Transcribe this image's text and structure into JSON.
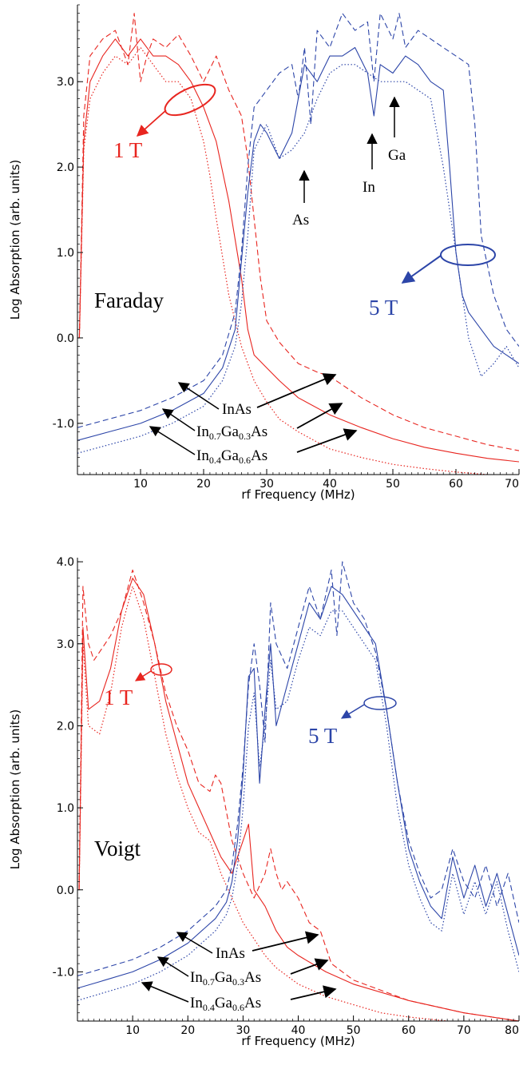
{
  "chart_data": [
    {
      "type": "line",
      "panel": "Faraday",
      "xlabel": "rf Frequency (MHz)",
      "ylabel": "Log Absorption (arb. units)",
      "xlim": [
        0,
        70
      ],
      "ylim": [
        -1.6,
        3.9
      ],
      "x_ticks": [
        10,
        20,
        30,
        40,
        50,
        60,
        70
      ],
      "y_ticks": [
        -1.0,
        0.0,
        1.0,
        2.0,
        3.0
      ],
      "x_tick_labels": [
        "10",
        "20",
        "30",
        "40",
        "50",
        "60",
        "70"
      ],
      "y_tick_labels": [
        "-1.0",
        "0.0",
        "1.0",
        "2.0",
        "3.0"
      ],
      "panel_label": "Faraday",
      "field_labels": [
        "1 T",
        "5 T"
      ],
      "peak_labels": [
        "As",
        "In",
        "Ga"
      ],
      "material_labels": [
        {
          "base": "InAs"
        },
        {
          "base": "In",
          "sub1": "0.7",
          "mid": "Ga",
          "sub2": "0.3",
          "tail": "As"
        },
        {
          "base": "In",
          "sub1": "0.4",
          "mid": "Ga",
          "sub2": "0.6",
          "tail": "As"
        }
      ],
      "colors": {
        "1T": "#e8251f",
        "5T": "#2c45a8"
      },
      "series": [
        {
          "field": "1T",
          "material": "InAs",
          "style": "dashed",
          "x": [
            0.3,
            1,
            2,
            4,
            6,
            8,
            9,
            10,
            11,
            12,
            14,
            16,
            18,
            20,
            22,
            24,
            26,
            27,
            28,
            29,
            30,
            32,
            35,
            38,
            40,
            45,
            50,
            55,
            60,
            65,
            70
          ],
          "y": [
            0.0,
            2.6,
            3.3,
            3.5,
            3.6,
            3.2,
            3.8,
            3.0,
            3.3,
            3.5,
            3.4,
            3.55,
            3.3,
            3.0,
            3.3,
            2.9,
            2.6,
            2.1,
            1.4,
            0.7,
            0.2,
            -0.05,
            -0.3,
            -0.4,
            -0.45,
            -0.7,
            -0.9,
            -1.05,
            -1.15,
            -1.25,
            -1.32
          ]
        },
        {
          "field": "1T",
          "material": "In0.7Ga0.3As",
          "style": "solid",
          "x": [
            0.3,
            1,
            2,
            4,
            6,
            8,
            10,
            12,
            14,
            16,
            18,
            20,
            22,
            24,
            26,
            27,
            28,
            30,
            32,
            35,
            40,
            45,
            50,
            55,
            60,
            65,
            70
          ],
          "y": [
            0.0,
            2.3,
            3.0,
            3.3,
            3.5,
            3.3,
            3.5,
            3.3,
            3.3,
            3.2,
            3.0,
            2.7,
            2.3,
            1.6,
            0.7,
            0.1,
            -0.2,
            -0.35,
            -0.5,
            -0.7,
            -0.9,
            -1.05,
            -1.18,
            -1.28,
            -1.35,
            -1.41,
            -1.45
          ]
        },
        {
          "field": "1T",
          "material": "In0.4Ga0.6As",
          "style": "dotted",
          "x": [
            0.3,
            1,
            2,
            4,
            6,
            8,
            10,
            12,
            14,
            16,
            18,
            20,
            21,
            22,
            24,
            26,
            28,
            30,
            32,
            35,
            40,
            45,
            50,
            55,
            60,
            65,
            70
          ],
          "y": [
            0.0,
            2.2,
            2.8,
            3.1,
            3.3,
            3.2,
            3.4,
            3.2,
            3.0,
            3.0,
            2.8,
            2.3,
            1.9,
            1.4,
            0.5,
            -0.1,
            -0.5,
            -0.75,
            -0.95,
            -1.1,
            -1.3,
            -1.4,
            -1.48,
            -1.53,
            -1.57,
            -1.6,
            -1.62
          ]
        },
        {
          "field": "5T",
          "material": "InAs",
          "style": "dashed",
          "x": [
            0,
            5,
            10,
            15,
            20,
            23,
            25,
            26,
            27,
            28,
            30,
            32,
            34,
            35,
            36,
            37,
            38,
            40,
            42,
            44,
            46,
            47,
            48,
            50,
            51,
            52,
            54,
            56,
            58,
            60,
            62,
            63,
            64,
            66,
            68,
            70
          ],
          "y": [
            -1.05,
            -0.95,
            -0.85,
            -0.7,
            -0.5,
            -0.2,
            0.3,
            1.0,
            2.0,
            2.7,
            2.9,
            3.1,
            3.2,
            2.8,
            3.4,
            2.5,
            3.6,
            3.4,
            3.8,
            3.6,
            3.7,
            3.0,
            3.8,
            3.5,
            3.8,
            3.4,
            3.6,
            3.5,
            3.4,
            3.3,
            3.2,
            2.5,
            1.2,
            0.5,
            0.1,
            -0.1
          ]
        },
        {
          "field": "5T",
          "material": "In0.7Ga0.3As",
          "style": "solid",
          "x": [
            0,
            5,
            10,
            15,
            20,
            23,
            25,
            26,
            27,
            28,
            29,
            30,
            32,
            34,
            36,
            38,
            40,
            42,
            44,
            46,
            47,
            48,
            50,
            52,
            54,
            56,
            58,
            59,
            60,
            61,
            62,
            64,
            66,
            68,
            70
          ],
          "y": [
            -1.2,
            -1.1,
            -1.0,
            -0.85,
            -0.65,
            -0.35,
            0.1,
            0.9,
            1.7,
            2.3,
            2.5,
            2.4,
            2.1,
            2.4,
            3.2,
            3.0,
            3.3,
            3.3,
            3.4,
            3.1,
            2.6,
            3.2,
            3.1,
            3.3,
            3.2,
            3.0,
            2.9,
            2.0,
            1.0,
            0.5,
            0.3,
            0.1,
            -0.1,
            -0.2,
            -0.3
          ]
        },
        {
          "field": "5T",
          "material": "In0.4Ga0.6As",
          "style": "dotted",
          "x": [
            0,
            5,
            10,
            15,
            20,
            23,
            25,
            26,
            27,
            28,
            30,
            32,
            34,
            36,
            38,
            40,
            42,
            44,
            46,
            48,
            50,
            52,
            54,
            56,
            58,
            60,
            62,
            64,
            66,
            68,
            70
          ],
          "y": [
            -1.35,
            -1.25,
            -1.15,
            -1.0,
            -0.8,
            -0.5,
            -0.1,
            0.4,
            1.2,
            2.2,
            2.5,
            2.1,
            2.2,
            2.4,
            2.8,
            3.1,
            3.2,
            3.2,
            3.1,
            3.0,
            3.0,
            3.0,
            2.9,
            2.8,
            2.0,
            1.0,
            0.0,
            -0.45,
            -0.3,
            -0.1,
            -0.35
          ]
        }
      ]
    },
    {
      "type": "line",
      "panel": "Voigt",
      "xlabel": "rf Frequency (MHz)",
      "ylabel": "Log Absorption (arb. units)",
      "xlim": [
        0,
        80
      ],
      "ylim": [
        -1.6,
        4.05
      ],
      "x_ticks": [
        10,
        20,
        30,
        40,
        50,
        60,
        70,
        80
      ],
      "y_ticks": [
        -1.0,
        0.0,
        1.0,
        2.0,
        3.0,
        4.0
      ],
      "x_tick_labels": [
        "10",
        "20",
        "30",
        "40",
        "50",
        "60",
        "70",
        "80"
      ],
      "y_tick_labels": [
        "-1.0",
        "0.0",
        "1.0",
        "2.0",
        "3.0",
        "4.0"
      ],
      "panel_label": "Voigt",
      "field_labels": [
        "1 T",
        "5 T"
      ],
      "material_labels": [
        {
          "base": "InAs"
        },
        {
          "base": "In",
          "sub1": "0.7",
          "mid": "Ga",
          "sub2": "0.3",
          "tail": "As"
        },
        {
          "base": "In",
          "sub1": "0.4",
          "mid": "Ga",
          "sub2": "0.6",
          "tail": "As"
        }
      ],
      "colors": {
        "1T": "#e8251f",
        "5T": "#2c45a8"
      },
      "series": [
        {
          "field": "1T",
          "material": "InAs",
          "style": "dashed",
          "x": [
            0.3,
            1,
            2,
            3,
            4,
            6,
            8,
            10,
            12,
            14,
            16,
            18,
            20,
            22,
            24,
            25,
            26,
            28,
            30,
            32,
            34,
            35,
            36,
            37,
            38,
            40,
            42,
            44,
            46,
            50,
            60,
            70,
            80
          ],
          "y": [
            0.0,
            3.7,
            3.0,
            2.8,
            2.9,
            3.1,
            3.4,
            3.9,
            3.5,
            3.0,
            2.4,
            2.0,
            1.7,
            1.3,
            1.2,
            1.4,
            1.3,
            0.6,
            0.2,
            -0.1,
            0.2,
            0.5,
            0.2,
            0.0,
            0.1,
            -0.1,
            -0.4,
            -0.5,
            -0.9,
            -1.1,
            -1.35,
            -1.5,
            -1.6
          ]
        },
        {
          "field": "1T",
          "material": "In0.7Ga0.3As",
          "style": "solid",
          "x": [
            0.3,
            1,
            2,
            4,
            6,
            8,
            10,
            12,
            14,
            16,
            18,
            20,
            22,
            24,
            26,
            28,
            30,
            31,
            32,
            34,
            36,
            38,
            40,
            45,
            50,
            60,
            70,
            80
          ],
          "y": [
            0.0,
            3.2,
            2.2,
            2.3,
            2.7,
            3.4,
            3.8,
            3.6,
            3.0,
            2.3,
            1.8,
            1.3,
            1.0,
            0.7,
            0.4,
            0.2,
            0.6,
            0.8,
            0.0,
            -0.2,
            -0.5,
            -0.7,
            -0.8,
            -1.0,
            -1.15,
            -1.35,
            -1.5,
            -1.6
          ]
        },
        {
          "field": "1T",
          "material": "In0.4Ga0.6As",
          "style": "dotted",
          "x": [
            0.3,
            1,
            2,
            4,
            6,
            8,
            10,
            12,
            14,
            16,
            18,
            20,
            22,
            24,
            26,
            28,
            30,
            32,
            34,
            36,
            40,
            45,
            50,
            55,
            60,
            70,
            80
          ],
          "y": [
            0.0,
            3.0,
            2.0,
            1.9,
            2.4,
            3.2,
            3.7,
            3.3,
            2.6,
            1.9,
            1.4,
            1.0,
            0.7,
            0.6,
            0.2,
            -0.1,
            -0.4,
            -0.6,
            -0.8,
            -0.95,
            -1.15,
            -1.3,
            -1.4,
            -1.5,
            -1.55,
            -1.62,
            -1.67
          ]
        },
        {
          "field": "5T",
          "material": "InAs",
          "style": "dashed",
          "x": [
            0,
            5,
            10,
            15,
            20,
            25,
            27,
            28,
            29,
            30,
            31,
            32,
            33,
            34,
            35,
            36,
            38,
            40,
            42,
            44,
            46,
            47,
            48,
            50,
            52,
            54,
            56,
            58,
            60,
            62,
            64,
            66,
            68,
            70,
            72,
            74,
            76,
            78,
            80
          ],
          "y": [
            -1.05,
            -0.95,
            -0.85,
            -0.7,
            -0.5,
            -0.2,
            0.0,
            0.3,
            0.8,
            1.5,
            2.5,
            3.0,
            2.5,
            1.8,
            3.5,
            3.0,
            2.7,
            3.2,
            3.7,
            3.3,
            3.9,
            3.1,
            4.0,
            3.5,
            3.3,
            2.9,
            2.2,
            1.3,
            0.6,
            0.2,
            -0.1,
            0.0,
            0.5,
            0.1,
            -0.1,
            0.3,
            -0.2,
            0.2,
            -0.4
          ]
        },
        {
          "field": "5T",
          "material": "In0.7Ga0.3As",
          "style": "solid",
          "x": [
            0,
            5,
            10,
            15,
            20,
            25,
            27,
            28,
            29,
            30,
            31,
            32,
            33,
            34,
            35,
            36,
            38,
            40,
            42,
            44,
            46,
            48,
            50,
            52,
            54,
            56,
            58,
            60,
            62,
            64,
            66,
            68,
            70,
            72,
            74,
            76,
            78,
            80
          ],
          "y": [
            -1.2,
            -1.1,
            -1.0,
            -0.85,
            -0.65,
            -0.35,
            -0.15,
            0.1,
            0.6,
            1.4,
            2.6,
            2.7,
            1.3,
            2.2,
            3.0,
            2.0,
            2.5,
            3.0,
            3.5,
            3.3,
            3.7,
            3.6,
            3.4,
            3.2,
            3.0,
            2.2,
            1.3,
            0.5,
            0.1,
            -0.2,
            -0.35,
            0.4,
            -0.1,
            0.3,
            -0.2,
            0.2,
            -0.3,
            -0.8
          ]
        },
        {
          "field": "5T",
          "material": "In0.4Ga0.6As",
          "style": "dotted",
          "x": [
            0,
            5,
            10,
            15,
            20,
            25,
            27,
            28,
            29,
            30,
            31,
            32,
            33,
            34,
            35,
            36,
            38,
            40,
            42,
            44,
            46,
            48,
            50,
            52,
            54,
            56,
            58,
            60,
            62,
            64,
            66,
            68,
            70,
            72,
            74,
            76,
            78,
            80
          ],
          "y": [
            -1.35,
            -1.25,
            -1.15,
            -1.0,
            -0.8,
            -0.5,
            -0.3,
            -0.1,
            0.3,
            1.0,
            2.0,
            2.4,
            1.5,
            2.0,
            2.8,
            2.2,
            2.3,
            2.8,
            3.2,
            3.1,
            3.4,
            3.4,
            3.2,
            3.0,
            2.8,
            2.0,
            1.0,
            0.3,
            -0.1,
            -0.4,
            -0.5,
            0.2,
            -0.3,
            0.1,
            -0.3,
            0.1,
            -0.5,
            -1.0
          ]
        }
      ]
    }
  ]
}
